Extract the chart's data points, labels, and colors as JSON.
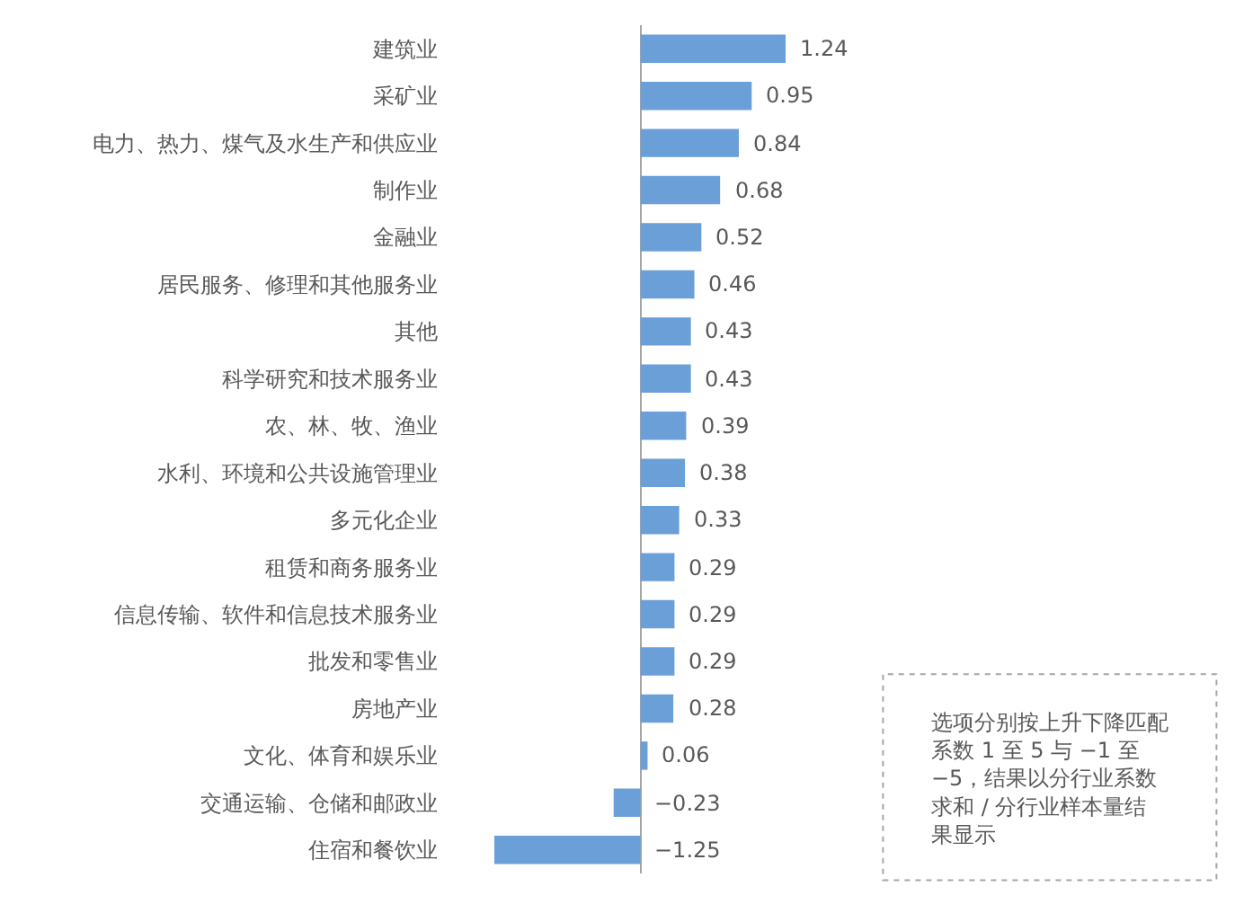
{
  "chart_data": {
    "type": "bar",
    "orientation": "horizontal",
    "data_labels": true,
    "tick_labels": "y",
    "categories": [
      "建筑业",
      "采矿业",
      "电力、热力、煤气及水生产和供应业",
      "制作业",
      "金融业",
      "居民服务、修理和其他服务业",
      "其他",
      "科学研究和技术服务业",
      "农、林、牧、渔业",
      "水利、环境和公共设施管理业",
      "多元化企业",
      "租赁和商务服务业",
      "信息传输、软件和信息技术服务业",
      "批发和零售业",
      "房地产业",
      "文化、体育和娱乐业",
      "交通运输、仓储和邮政业",
      "住宿和餐饮业"
    ],
    "values": [
      1.24,
      0.95,
      0.84,
      0.68,
      0.52,
      0.46,
      0.43,
      0.43,
      0.39,
      0.38,
      0.33,
      0.29,
      0.29,
      0.29,
      0.28,
      0.06,
      -0.23,
      -1.25
    ],
    "color": "#6a9fd8",
    "annotations": [
      "选项分别按上升下降匹配系数 1 至 5 与 −1 至 −5，结果以分行业系数求和 / 分行业样本量结果显示"
    ]
  }
}
